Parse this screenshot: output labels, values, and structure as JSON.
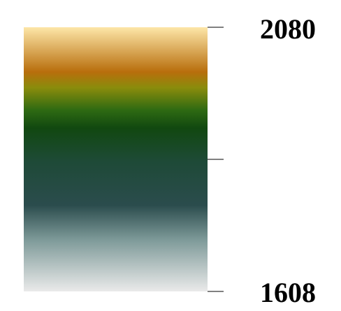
{
  "chart_data": {
    "type": "heatmap",
    "title": "",
    "colorbar": {
      "orientation": "vertical",
      "min": 1608,
      "max": 2080,
      "tick_values": [
        2080,
        1844,
        1608
      ],
      "tick_labels": [
        {
          "value": 2080,
          "text": "2080"
        },
        {
          "value": 1608,
          "text": "1608"
        }
      ],
      "color_stops": [
        {
          "value": 2080,
          "color": "#fde6a8"
        },
        {
          "value": 2000,
          "color": "#b86e0c"
        },
        {
          "value": 1972,
          "color": "#8a8c0c"
        },
        {
          "value": 1932,
          "color": "#2e6a12"
        },
        {
          "value": 1900,
          "color": "#114810"
        },
        {
          "value": 1840,
          "color": "#1e4a37"
        },
        {
          "value": 1762,
          "color": "#2b4c4d"
        },
        {
          "value": 1700,
          "color": "#7e9a99"
        },
        {
          "value": 1608,
          "color": "#eaeaea"
        }
      ]
    }
  }
}
